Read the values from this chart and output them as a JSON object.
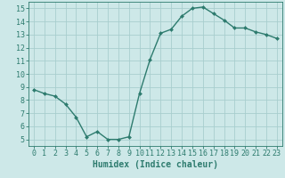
{
  "x": [
    0,
    1,
    2,
    3,
    4,
    5,
    6,
    7,
    8,
    9,
    10,
    11,
    12,
    13,
    14,
    15,
    16,
    17,
    18,
    19,
    20,
    21,
    22,
    23
  ],
  "y": [
    8.8,
    8.5,
    8.3,
    7.7,
    6.7,
    5.2,
    5.6,
    5.0,
    5.0,
    5.2,
    8.5,
    11.1,
    13.1,
    13.4,
    14.4,
    15.0,
    15.1,
    14.6,
    14.1,
    13.5,
    13.5,
    13.2,
    13.0,
    12.7
  ],
  "line_color": "#2d7b6e",
  "marker": "D",
  "marker_size": 2.0,
  "line_width": 1.0,
  "bg_color": "#cde8e8",
  "grid_color": "#a8cece",
  "xlabel": "Humidex (Indice chaleur)",
  "xlabel_fontsize": 7,
  "tick_fontsize": 6,
  "ylim": [
    4.5,
    15.5
  ],
  "xlim": [
    -0.5,
    23.5
  ],
  "yticks": [
    5,
    6,
    7,
    8,
    9,
    10,
    11,
    12,
    13,
    14,
    15
  ],
  "xticks": [
    0,
    1,
    2,
    3,
    4,
    5,
    6,
    7,
    8,
    9,
    10,
    11,
    12,
    13,
    14,
    15,
    16,
    17,
    18,
    19,
    20,
    21,
    22,
    23
  ]
}
